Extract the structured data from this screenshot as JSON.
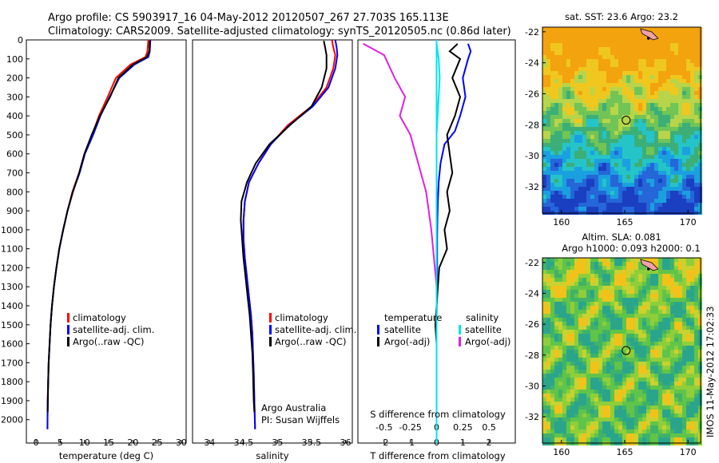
{
  "header": {
    "line1": "Argo profile: CS 5903917_16 04-May-2012 20120507_267 27.703S 165.113E",
    "line2": "Climatology: CARS2009. Satellite-adjusted climatology: synTS_20120505.nc (0.86d later)"
  },
  "colors": {
    "climatology": "#ff0000",
    "satellite": "#0000ff",
    "argo": "#000000",
    "s_sat": "#00e5e5",
    "s_argo": "#e020e0"
  },
  "chart_data": [
    {
      "type": "line",
      "xlabel": "temperature (deg C)",
      "xticks": [
        0,
        5,
        10,
        15,
        20,
        25,
        30
      ],
      "xlim": [
        -2,
        31
      ],
      "ylim": [
        0,
        2060
      ],
      "yticks": [
        0,
        100,
        200,
        300,
        400,
        500,
        600,
        700,
        800,
        900,
        1000,
        1100,
        1200,
        1300,
        1400,
        1500,
        1600,
        1700,
        1800,
        1900,
        2000
      ],
      "legend": [
        "climatology",
        "satellite-adj. clim.",
        "Argo(..raw -QC)"
      ],
      "series": [
        {
          "name": "climatology",
          "color": "#ff0000",
          "x": [
            23.2,
            23.0,
            22.6,
            19.5,
            16.5,
            14.8,
            13.0,
            11.6,
            10.0,
            8.9,
            7.5,
            6.5,
            5.6,
            4.8,
            4.2,
            3.7,
            3.3,
            3.0,
            2.8,
            2.6,
            2.5,
            2.4,
            2.35
          ],
          "y": [
            0,
            60,
            90,
            130,
            200,
            300,
            400,
            500,
            600,
            700,
            800,
            900,
            1000,
            1100,
            1200,
            1300,
            1400,
            1500,
            1600,
            1700,
            1800,
            1900,
            2050
          ]
        },
        {
          "name": "satellite-adj. clim.",
          "color": "#0000ff",
          "x": [
            23.6,
            23.5,
            23.2,
            20.3,
            17.2,
            15.2,
            13.3,
            11.8,
            10.1,
            9.0,
            7.6,
            6.5,
            5.6,
            4.8,
            4.2,
            3.7,
            3.3,
            3.0,
            2.8,
            2.6,
            2.5,
            2.4,
            2.35
          ],
          "y": [
            0,
            60,
            90,
            130,
            200,
            300,
            400,
            500,
            600,
            700,
            800,
            900,
            1000,
            1100,
            1200,
            1300,
            1400,
            1500,
            1600,
            1700,
            1800,
            1900,
            2050
          ]
        },
        {
          "name": "Argo(..raw -QC)",
          "color": "#000000",
          "x": [
            23.5,
            23.4,
            22.9,
            20.0,
            17.0,
            15.3,
            13.2,
            11.5,
            10.0,
            8.9,
            7.6,
            6.5,
            5.6,
            4.8,
            4.2,
            3.7,
            3.3,
            3.0,
            2.8,
            2.6,
            2.5,
            2.4
          ],
          "y": [
            5,
            60,
            90,
            130,
            200,
            300,
            400,
            500,
            600,
            700,
            800,
            900,
            1000,
            1100,
            1200,
            1300,
            1400,
            1500,
            1600,
            1700,
            1800,
            1960
          ]
        }
      ]
    },
    {
      "type": "line",
      "xlabel": "salinity",
      "xticks": [
        34,
        34.5,
        35,
        35.5,
        36
      ],
      "xlim": [
        33.75,
        36.1
      ],
      "ylim": [
        0,
        2060
      ],
      "legend": [
        "climatology",
        "satellite-adj. clim.",
        "Argo(..raw -QC)"
      ],
      "annotations": [
        "Argo Australia",
        "PI: Susan Wijffels"
      ],
      "series": [
        {
          "name": "climatology",
          "color": "#ff0000",
          "x": [
            35.8,
            35.82,
            35.85,
            35.82,
            35.72,
            35.5,
            35.15,
            34.9,
            34.72,
            34.58,
            34.52,
            34.5,
            34.5,
            34.52,
            34.55,
            34.58,
            34.61,
            34.63,
            34.64,
            34.65,
            34.66,
            34.67
          ],
          "y": [
            0,
            40,
            80,
            150,
            250,
            350,
            450,
            550,
            650,
            750,
            850,
            950,
            1050,
            1150,
            1250,
            1350,
            1450,
            1550,
            1650,
            1750,
            1900,
            2050
          ]
        },
        {
          "name": "satellite-adj. clim.",
          "color": "#0000ff",
          "x": [
            35.85,
            35.87,
            35.88,
            35.85,
            35.75,
            35.52,
            35.17,
            34.9,
            34.72,
            34.58,
            34.52,
            34.5,
            34.5,
            34.52,
            34.55,
            34.58,
            34.61,
            34.63,
            34.64,
            34.65,
            34.66,
            34.67
          ],
          "y": [
            0,
            40,
            80,
            150,
            250,
            350,
            450,
            550,
            650,
            750,
            850,
            950,
            1050,
            1150,
            1250,
            1350,
            1450,
            1550,
            1650,
            1750,
            1900,
            2050
          ]
        },
        {
          "name": "Argo(..raw -QC)",
          "color": "#000000",
          "x": [
            35.68,
            35.7,
            35.72,
            35.72,
            35.65,
            35.5,
            35.18,
            34.88,
            34.68,
            34.55,
            34.47,
            34.46,
            34.48,
            34.5,
            34.53,
            34.56,
            34.59,
            34.61,
            34.63,
            34.64,
            34.65,
            34.66
          ],
          "y": [
            5,
            40,
            80,
            150,
            250,
            350,
            450,
            550,
            650,
            750,
            850,
            950,
            1050,
            1150,
            1250,
            1350,
            1450,
            1550,
            1650,
            1750,
            1900,
            1960
          ]
        }
      ]
    },
    {
      "type": "line",
      "xlabel_bottom": "T difference from climatology",
      "xlabel_top": "S difference from climatology",
      "xticks_bottom": [
        -2,
        -1,
        0,
        1,
        2
      ],
      "xticks_top": [
        -0.5,
        -0.25,
        0,
        0.25,
        0.5
      ],
      "xlim": [
        -3.0,
        3.0
      ],
      "ylim": [
        0,
        2060
      ],
      "legend_left_title": "temperature",
      "legend_right_title": "salinity",
      "legend": [
        "satellite",
        "Argo(-adj)",
        "satellite",
        "Argo(-adj)"
      ],
      "series": [
        {
          "name": "temperature satellite",
          "color": "#0000ff",
          "x": [
            1.2,
            1.3,
            1.2,
            1.0,
            1.1,
            0.9,
            0.7,
            0.3,
            0.15,
            0.08,
            0.05,
            0.03,
            0.02,
            0.02,
            0.01,
            0.0,
            0.0,
            0.0,
            0.0,
            0.0,
            0.0
          ],
          "y": [
            20,
            60,
            100,
            200,
            300,
            400,
            480,
            550,
            650,
            750,
            850,
            950,
            1050,
            1200,
            1350,
            1500,
            1650,
            1800,
            1900,
            2000,
            2050
          ]
        },
        {
          "name": "temperature Argo(-adj)",
          "color": "#000000",
          "x": [
            0.8,
            0.5,
            0.9,
            0.6,
            0.9,
            0.7,
            0.4,
            0.5,
            0.6,
            0.4,
            0.5,
            0.3,
            0.4,
            0.1,
            0.05,
            0.0,
            -0.05,
            0.0,
            0.0,
            0.0
          ],
          "y": [
            20,
            60,
            100,
            200,
            300,
            400,
            500,
            600,
            700,
            800,
            900,
            1000,
            1100,
            1200,
            1300,
            1400,
            1500,
            1600,
            1800,
            1960
          ]
        },
        {
          "name": "salinity satellite",
          "color": "#00e5e5",
          "x": [
            0.0,
            0.02,
            0.03,
            0.02,
            0.01,
            0.0,
            0.0,
            0.0,
            0.0,
            0.0,
            0.0,
            0.0,
            0.0,
            0.0,
            0.0
          ],
          "y": [
            20,
            100,
            200,
            300,
            400,
            500,
            600,
            700,
            800,
            900,
            1100,
            1300,
            1500,
            1800,
            2050
          ]
        },
        {
          "name": "salinity Argo(-adj)",
          "color": "#e020e0",
          "x": [
            -0.7,
            -0.5,
            -0.4,
            -0.3,
            -0.35,
            -0.25,
            -0.2,
            -0.15,
            -0.1,
            -0.05,
            0.0,
            0.0
          ],
          "y": [
            20,
            80,
            200,
            300,
            400,
            500,
            600,
            700,
            800,
            1000,
            1300,
            1900
          ]
        }
      ]
    },
    {
      "type": "heatmap",
      "title": "sat. SST: 23.6 Argo: 23.2",
      "xticks": [
        160,
        165,
        170
      ],
      "yticks": [
        -22,
        -24,
        -26,
        -28,
        -30,
        -32
      ],
      "xlim": [
        158.5,
        171
      ],
      "ylim": [
        -33.7,
        -21.7
      ],
      "argo_position": {
        "lon": 165.113,
        "lat": -27.703
      }
    },
    {
      "type": "heatmap",
      "title_line1": "Altim. SLA: 0.081",
      "title_line2": "Argo h1000: 0.093 h2000: 0.1",
      "xticks": [
        160,
        165,
        170
      ],
      "yticks": [
        -22,
        -24,
        -26,
        -28,
        -30,
        -32
      ],
      "xlim": [
        158.5,
        171
      ],
      "ylim": [
        -33.7,
        -21.7
      ],
      "argo_position": {
        "lon": 165.113,
        "lat": -27.703
      }
    }
  ],
  "side_label": "IMOS 11-May-2012 17:02:33"
}
